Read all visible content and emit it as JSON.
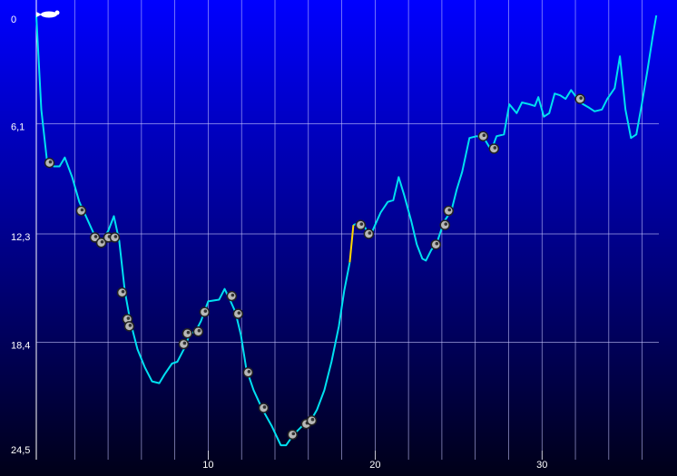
{
  "chart_data": {
    "type": "line",
    "xlim": [
      -0.3,
      37
    ],
    "ylim": [
      0,
      24.5
    ],
    "y_inverted": true,
    "xticks": [
      10,
      20,
      30
    ],
    "x_gridlines": [
      2,
      4,
      6,
      8,
      10,
      12,
      14,
      16,
      18,
      20,
      22,
      24,
      26,
      28,
      30,
      32,
      34,
      36
    ],
    "yticks": [
      0,
      {
        "value": 6.1,
        "label": "6,1"
      },
      {
        "value": 12.3,
        "label": "12,3"
      },
      {
        "value": 18.4,
        "label": "18,4"
      },
      {
        "value": 24.5,
        "label": "24,5"
      }
    ],
    "grid": true,
    "series": [
      {
        "color": "#00e0f0",
        "x": [
          -0.3,
          0,
          0.33,
          0.76,
          1.09,
          1.41,
          1.85,
          2.28,
          2.72,
          3.15,
          3.59,
          4.02,
          4.35,
          4.67,
          5.0,
          5.33,
          5.76,
          6.2,
          6.63,
          7.07,
          7.39,
          7.83,
          8.15,
          8.59,
          8.91,
          9.24,
          9.57,
          10.0,
          10.65,
          10.98,
          11.3,
          11.63,
          11.96,
          12.28,
          12.72,
          13.26,
          13.8,
          14.35,
          14.67,
          15.11,
          15.65,
          16.09,
          16.52,
          16.96,
          17.39,
          17.83,
          18.15,
          18.48,
          null,
          18.7,
          19.24,
          19.67,
          20.0,
          20.33,
          20.76,
          21.09,
          21.41,
          21.74,
          22.17,
          22.5,
          22.83,
          23.04,
          23.37,
          23.7,
          24.13,
          24.57,
          24.89,
          25.22,
          25.65,
          26.09,
          26.52,
          26.96,
          27.28,
          27.72,
          28.04,
          28.48,
          28.8,
          29.24,
          29.57,
          29.78,
          30.11,
          30.43,
          30.76,
          31.09,
          31.41,
          31.74,
          32.28,
          32.83,
          33.15,
          33.59,
          33.91,
          34.35,
          34.67,
          35.0,
          35.33,
          35.65,
          35.98,
          36.3,
          36.63,
          36.85
        ],
        "values": [
          0,
          5.3,
          8.1,
          8.5,
          8.5,
          8.0,
          9.1,
          10.5,
          11.4,
          12.3,
          12.8,
          12.1,
          11.3,
          12.7,
          15.5,
          17.2,
          18.8,
          19.8,
          20.6,
          20.7,
          20.2,
          19.6,
          19.5,
          18.7,
          17.9,
          17.8,
          17.2,
          16.1,
          16.0,
          15.4,
          16.0,
          16.7,
          18.0,
          19.9,
          21.1,
          22.2,
          23.1,
          24.2,
          24.2,
          23.6,
          23.1,
          22.9,
          22.2,
          21.1,
          19.5,
          17.5,
          15.5,
          13.9,
          null,
          11.8,
          11.6,
          12.5,
          11.8,
          11.1,
          10.5,
          10.4,
          9.1,
          10.1,
          11.6,
          12.9,
          13.7,
          13.8,
          13.2,
          12.8,
          11.6,
          11.0,
          9.8,
          8.8,
          6.9,
          6.8,
          6.9,
          7.6,
          6.8,
          6.7,
          5.0,
          5.5,
          4.9,
          5.0,
          5.1,
          4.6,
          5.7,
          5.5,
          4.4,
          4.5,
          4.7,
          4.2,
          4.9,
          5.2,
          5.4,
          5.3,
          4.7,
          4.1,
          2.3,
          5.3,
          6.9,
          6.7,
          5.0,
          3.2,
          1.2,
          0
        ]
      },
      {
        "color": "#ffd800",
        "x": [
          18.48,
          18.7
        ],
        "values": [
          13.9,
          11.8
        ]
      }
    ],
    "markers": {
      "x": [
        0.49,
        2.39,
        3.21,
        3.59,
        4.02,
        4.4,
        4.84,
        5.16,
        5.27,
        8.53,
        8.75,
        9.4,
        9.78,
        11.41,
        11.79,
        12.39,
        13.32,
        15.05,
        15.87,
        16.2,
        19.13,
        19.62,
        23.64,
        24.18,
        24.4,
        26.47,
        27.12,
        32.28
      ],
      "values": [
        8.3,
        11.0,
        12.5,
        12.8,
        12.5,
        12.5,
        15.6,
        17.1,
        17.5,
        18.5,
        17.9,
        17.8,
        16.7,
        15.8,
        16.8,
        20.1,
        22.1,
        23.6,
        23.0,
        22.8,
        11.8,
        12.3,
        12.9,
        11.8,
        11.0,
        6.8,
        7.5,
        4.7
      ]
    }
  }
}
